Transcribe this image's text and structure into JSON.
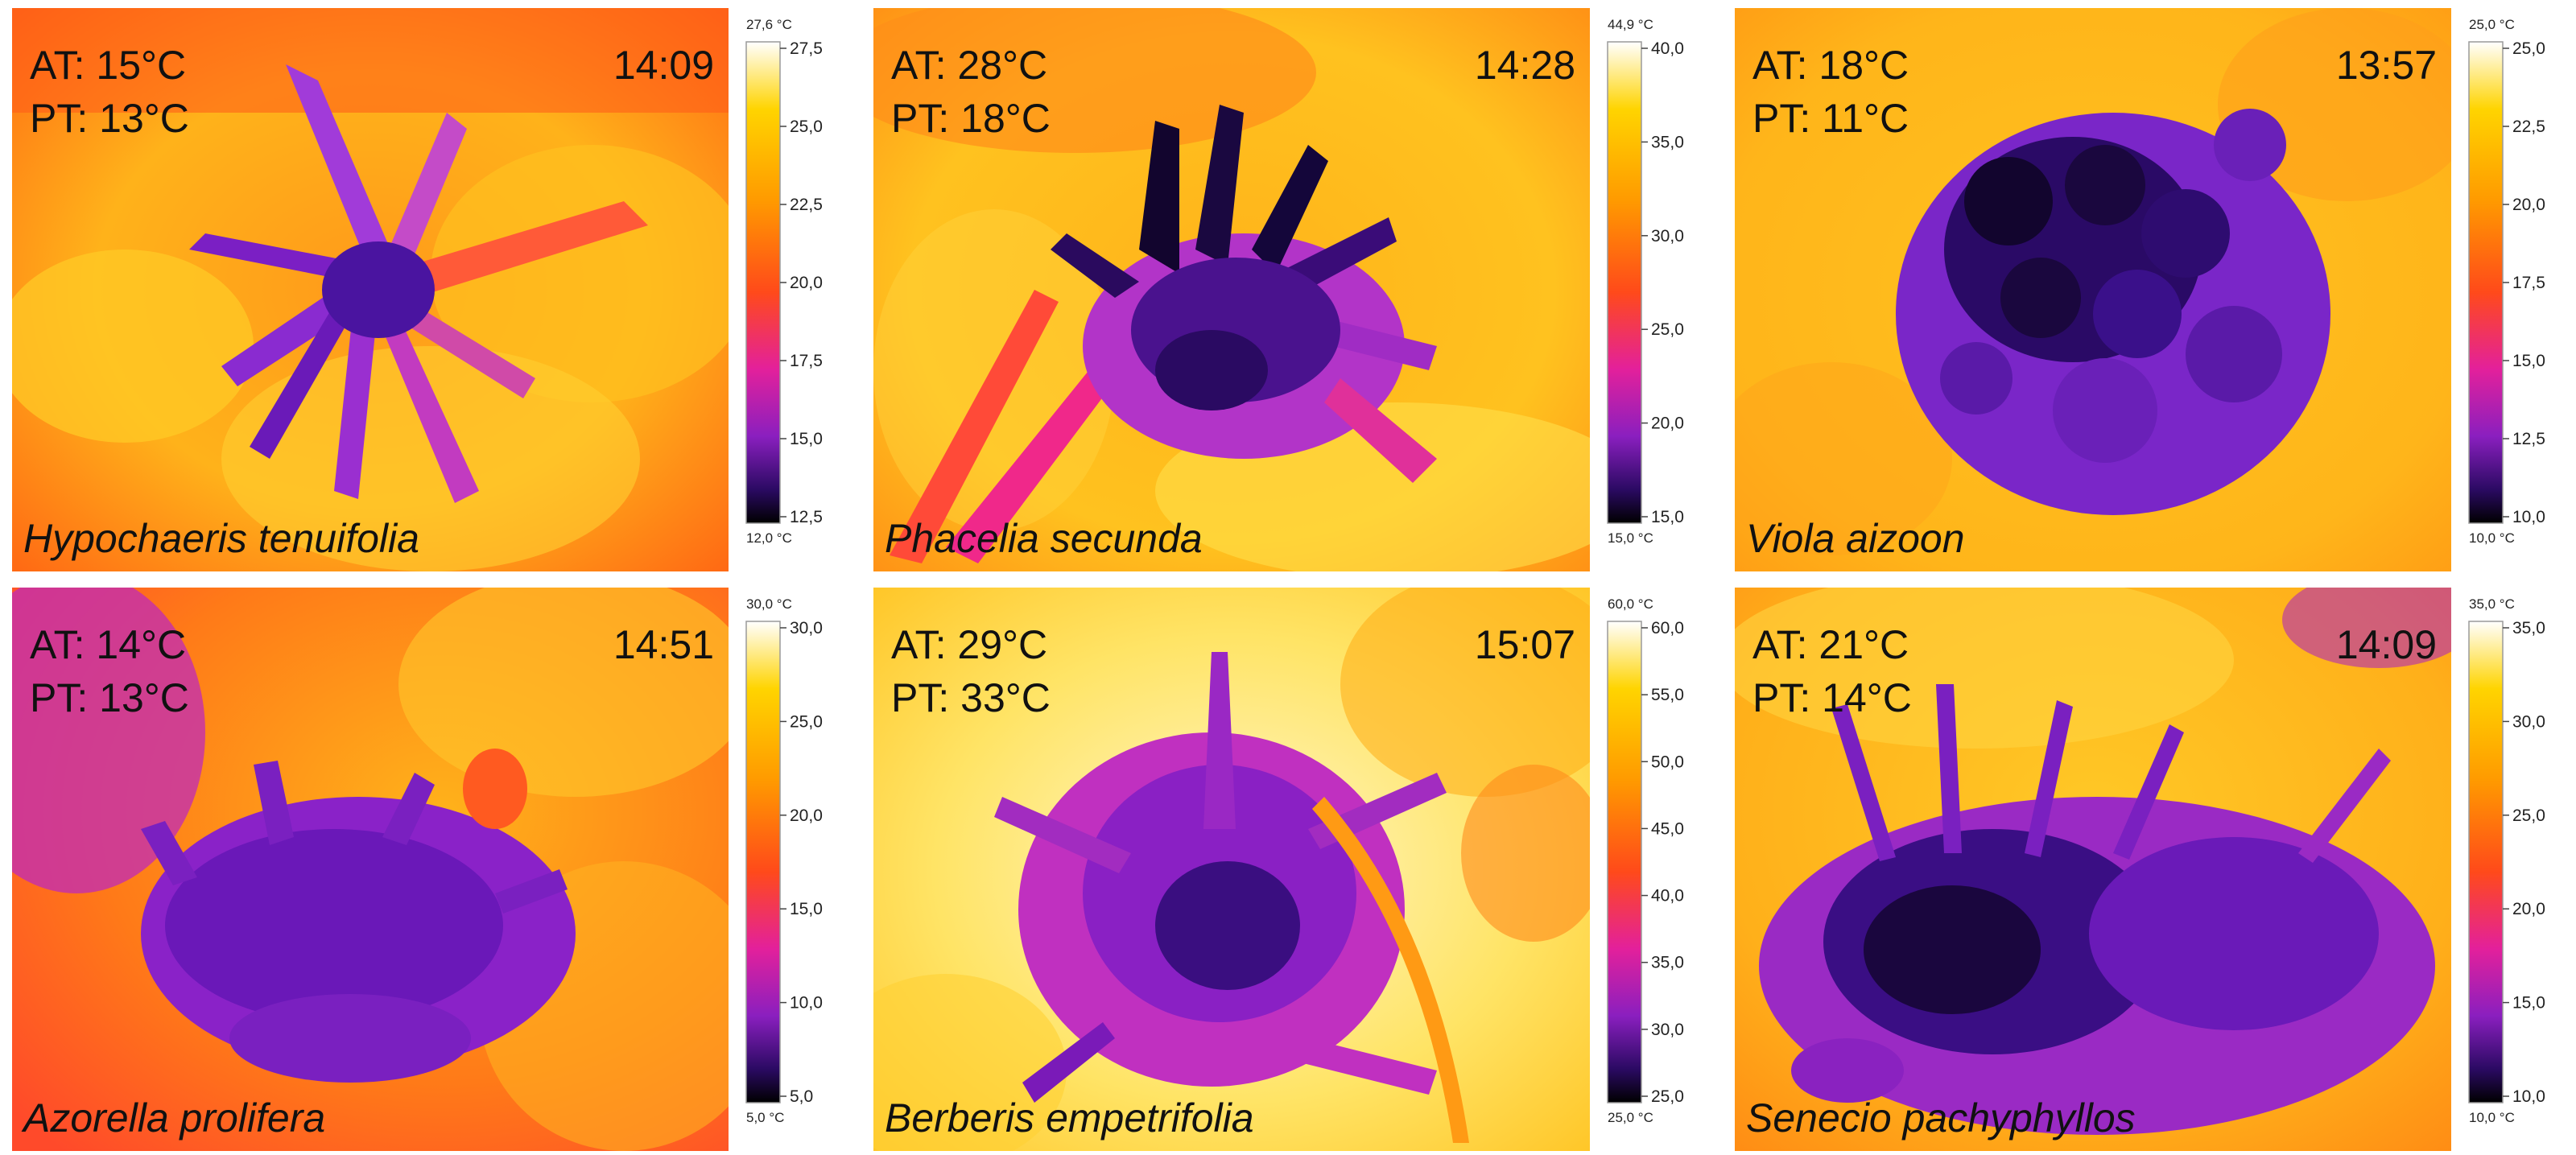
{
  "colors": {
    "palette_ironbow": [
      "#000000",
      "#2b0a63",
      "#8a1fbf",
      "#e3209b",
      "#ff4a1a",
      "#ff9a00",
      "#ffd400",
      "#ffffff"
    ],
    "text": "#111111"
  },
  "panels": [
    {
      "id": "hypochaeris",
      "at": "AT: 15°C",
      "pt": "PT: 13°C",
      "time": "14:09",
      "species": "Hypochaeris tenuifolia",
      "scale": {
        "max_label": "27,6 °C",
        "min_label": "12,0 °C",
        "ticks": [
          "27,5",
          "25,0",
          "22,5",
          "20,0",
          "17,5",
          "15,0",
          "12,5"
        ]
      }
    },
    {
      "id": "phacelia",
      "at": "AT: 28°C",
      "pt": "PT: 18°C",
      "time": "14:28",
      "species": "Phacelia secunda",
      "scale": {
        "max_label": "44,9 °C",
        "min_label": "15,0 °C",
        "ticks": [
          "40,0",
          "35,0",
          "30,0",
          "25,0",
          "20,0",
          "15,0"
        ]
      }
    },
    {
      "id": "viola",
      "at": "AT: 18°C",
      "pt": "PT: 11°C",
      "time": "13:57",
      "species": "Viola aizoon",
      "scale": {
        "max_label": "25,0 °C",
        "min_label": "10,0 °C",
        "ticks": [
          "25,0",
          "22,5",
          "20,0",
          "17,5",
          "15,0",
          "12,5",
          "10,0"
        ]
      }
    },
    {
      "id": "azorella",
      "at": "AT: 14°C",
      "pt": "PT: 13°C",
      "time": "14:51",
      "species": "Azorella prolifera",
      "scale": {
        "max_label": "30,0 °C",
        "min_label": "5,0 °C",
        "ticks": [
          "30,0",
          "25,0",
          "20,0",
          "15,0",
          "10,0",
          "5,0"
        ]
      }
    },
    {
      "id": "berberis",
      "at": "AT: 29°C",
      "pt": "PT: 33°C",
      "time": "15:07",
      "species": "Berberis empetrifolia",
      "scale": {
        "max_label": "60,0 °C",
        "min_label": "25,0 °C",
        "ticks": [
          "60,0",
          "55,0",
          "50,0",
          "45,0",
          "40,0",
          "35,0",
          "30,0",
          "25,0"
        ]
      }
    },
    {
      "id": "senecio",
      "at": "AT: 21°C",
      "pt": "PT: 14°C",
      "time": "14:09",
      "species": "Senecio pachyphyllos",
      "scale": {
        "max_label": "35,0 °C",
        "min_label": "10,0 °C",
        "ticks": [
          "35,0",
          "30,0",
          "25,0",
          "20,0",
          "15,0",
          "10,0"
        ]
      }
    }
  ]
}
